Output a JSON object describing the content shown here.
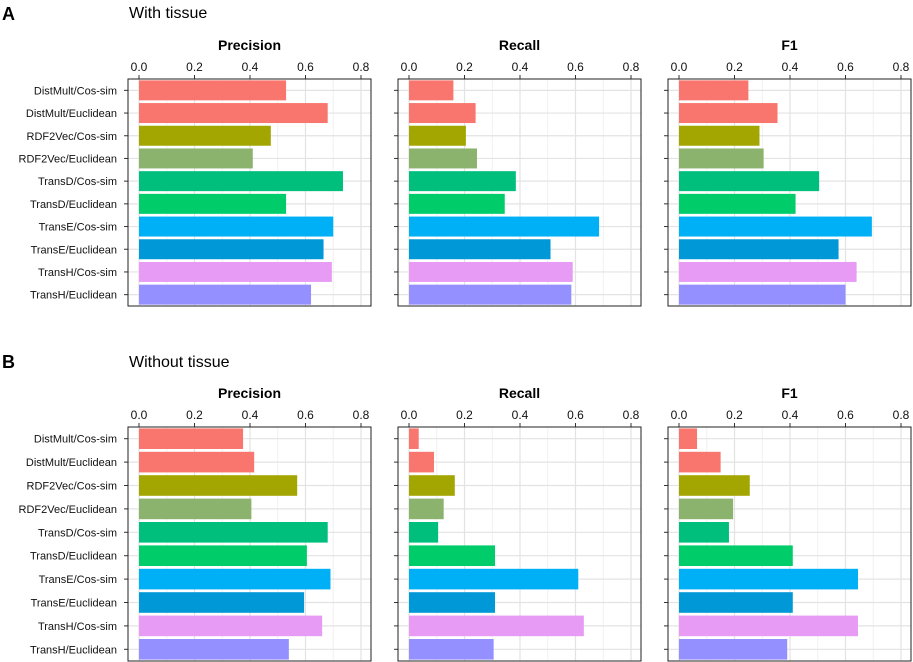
{
  "colors": {
    "DistMult/Cos-sim": "#F8766D",
    "DistMult/Euclidean": "#F8766D",
    "RDF2Vec/Cos-sim": "#A3A500",
    "RDF2Vec/Euclidean": "#8CB36E",
    "TransD/Cos-sim": "#00BF7D",
    "TransD/Euclidean": "#00CC6A",
    "TransE/Cos-sim": "#00B0F6",
    "TransE/Euclidean": "#0098D6",
    "TransH/Cos-sim": "#E79BF5",
    "TransH/Euclidean": "#9590FF"
  },
  "chart_data": [
    {
      "panel": "A",
      "subtitle": "With tissue",
      "type": "bar",
      "orientation": "horizontal",
      "categories": [
        "DistMult/Cos-sim",
        "DistMult/Euclidean",
        "RDF2Vec/Cos-sim",
        "RDF2Vec/Euclidean",
        "TransD/Cos-sim",
        "TransD/Euclidean",
        "TransE/Cos-sim",
        "TransE/Euclidean",
        "TransH/Cos-sim",
        "TransH/Euclidean"
      ],
      "xlim": [
        0,
        0.8
      ],
      "ticks": [
        "0.0",
        "0.2",
        "0.4",
        "0.6",
        "0.8"
      ],
      "facets": [
        {
          "title": "Precision",
          "values": [
            0.53,
            0.68,
            0.475,
            0.41,
            0.735,
            0.53,
            0.7,
            0.665,
            0.695,
            0.62
          ]
        },
        {
          "title": "Recall",
          "values": [
            0.16,
            0.24,
            0.205,
            0.245,
            0.385,
            0.345,
            0.685,
            0.51,
            0.59,
            0.585
          ]
        },
        {
          "title": "F1",
          "values": [
            0.25,
            0.355,
            0.29,
            0.305,
            0.505,
            0.42,
            0.695,
            0.575,
            0.64,
            0.6
          ]
        }
      ]
    },
    {
      "panel": "B",
      "subtitle": "Without tissue",
      "type": "bar",
      "orientation": "horizontal",
      "categories": [
        "DistMult/Cos-sim",
        "DistMult/Euclidean",
        "RDF2Vec/Cos-sim",
        "RDF2Vec/Euclidean",
        "TransD/Cos-sim",
        "TransD/Euclidean",
        "TransE/Cos-sim",
        "TransE/Euclidean",
        "TransH/Cos-sim",
        "TransH/Euclidean"
      ],
      "xlim": [
        0,
        0.8
      ],
      "ticks": [
        "0.0",
        "0.2",
        "0.4",
        "0.6",
        "0.8"
      ],
      "facets": [
        {
          "title": "Precision",
          "values": [
            0.375,
            0.415,
            0.57,
            0.405,
            0.68,
            0.605,
            0.69,
            0.595,
            0.66,
            0.54
          ]
        },
        {
          "title": "Recall",
          "values": [
            0.035,
            0.09,
            0.165,
            0.125,
            0.105,
            0.31,
            0.61,
            0.31,
            0.63,
            0.305
          ]
        },
        {
          "title": "F1",
          "values": [
            0.065,
            0.15,
            0.255,
            0.195,
            0.18,
            0.41,
            0.645,
            0.41,
            0.645,
            0.39
          ]
        }
      ]
    }
  ]
}
